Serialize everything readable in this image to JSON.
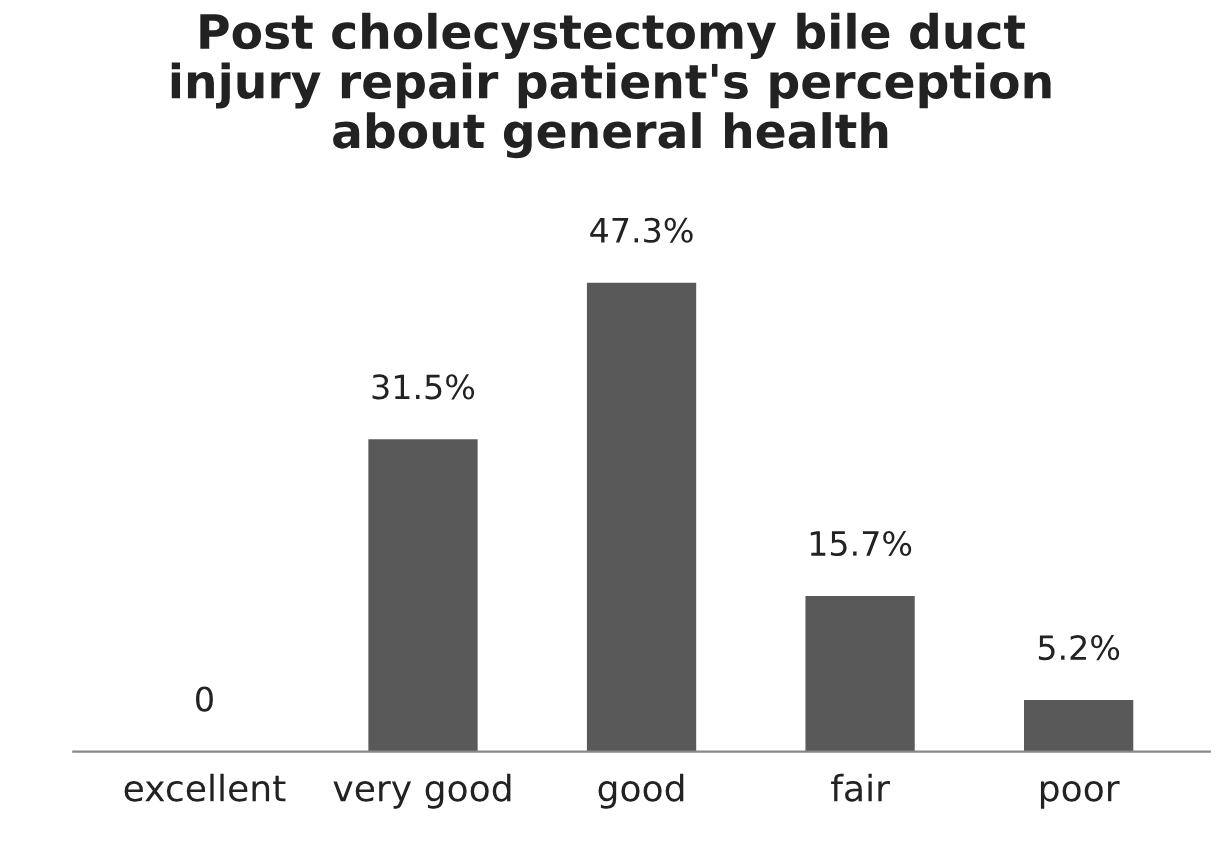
{
  "chart_data": {
    "type": "bar",
    "title": "Post cholecystectomy bile duct\ninjury repair patient's perception\nabout general health",
    "categories": [
      "excellent",
      "very good",
      "good",
      "fair",
      "poor"
    ],
    "values": [
      0,
      31.5,
      47.3,
      15.7,
      5.2
    ],
    "value_labels": [
      "0",
      "31.5%",
      "47.3%",
      "15.7%",
      "5.2%"
    ],
    "color": "#595959",
    "grid": false,
    "legend": false
  }
}
